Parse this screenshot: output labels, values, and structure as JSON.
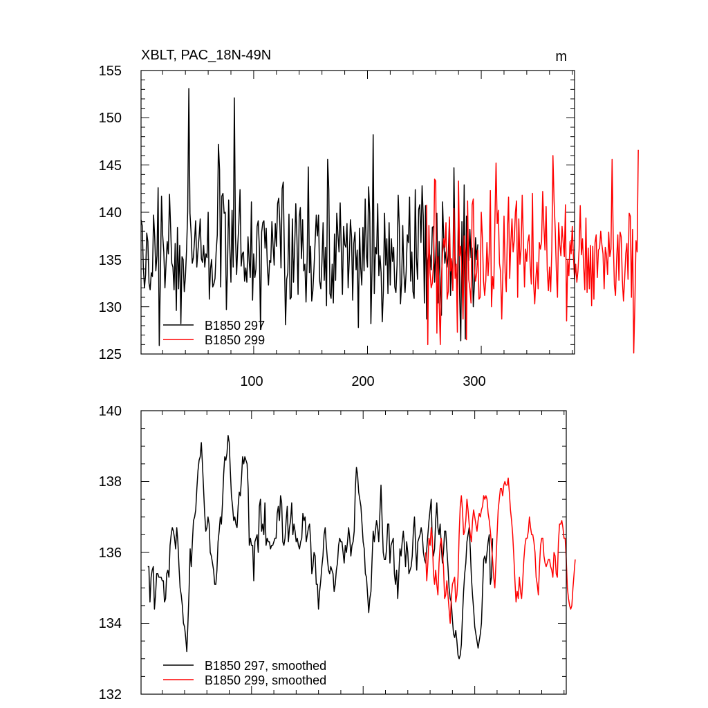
{
  "chart_data": [
    {
      "type": "line",
      "title": "XBLT, PAC_18N-49N",
      "units": "m",
      "xlim": [
        1,
        382
      ],
      "ylim": [
        125,
        155
      ],
      "xticks": [
        100,
        200,
        300
      ],
      "yticks": [
        125,
        130,
        135,
        140,
        145,
        150,
        155
      ],
      "legend_position": "bottom-left",
      "series": [
        {
          "name": "B1850 297",
          "color": "#000000",
          "x_start": 1,
          "values": [
            139.2,
            138.6,
            134.2,
            132.0,
            133.4,
            137.8,
            136.9,
            132.5,
            131.8,
            133.6,
            133.2,
            139.7,
            137.4,
            133.8,
            135.4,
            142.6,
            125.9,
            133.2,
            141.7,
            137.6,
            135.8,
            132.0,
            134.6,
            136.9,
            135.6,
            141.9,
            138.4,
            134.6,
            134.2,
            131.8,
            136.7,
            129.6,
            138.4,
            131.9,
            136.5,
            128.2,
            135.3,
            135.0,
            131.6,
            133.2,
            136.0,
            140.1,
            153.1,
            139.9,
            137.8,
            134.6,
            135.2,
            137.0,
            139.1,
            134.2,
            135.9,
            137.4,
            139.3,
            135.1,
            134.7,
            136.5,
            134.2,
            135.6,
            135.2,
            140.0,
            130.8,
            134.0,
            135.0,
            132.1,
            132.4,
            133.0,
            135.8,
            137.6,
            147.2,
            144.5,
            132.1,
            141.7,
            142.0,
            139.9,
            140.0,
            129.7,
            134.3,
            141.3,
            136.4,
            132.6,
            140.2,
            134.2,
            152.1,
            137.4,
            133.4,
            136.5,
            138.9,
            142.4,
            134.3,
            135.6,
            135.8,
            132.7,
            134.1,
            132.6,
            137.4,
            134.9,
            133.1,
            141.1,
            130.7,
            135.6,
            133.1,
            134.0,
            138.5,
            139.1,
            136.2,
            127.6,
            137.9,
            138.9,
            139.1,
            136.2,
            138.3,
            134.3,
            132.3,
            134.9,
            134.7,
            139.0,
            136.5,
            134.4,
            138.8,
            136.4,
            140.9,
            141.5,
            138.7,
            134.1,
            142.5,
            143.2,
            135.2,
            128.1,
            132.9,
            133.6,
            139.8,
            130.8,
            131.0,
            139.3,
            132.6,
            136.2,
            140.9,
            137.3,
            131.3,
            139.5,
            140.5,
            135.1,
            139.2,
            133.8,
            134.5,
            130.5,
            135.2,
            144.8,
            133.6,
            136.4,
            130.6,
            131.7,
            134.1,
            136.9,
            139.7,
            137.5,
            139.7,
            132.7,
            131.9,
            134.8,
            138.9,
            132.8,
            136.3,
            130.1,
            145.6,
            142.4,
            131.4,
            130.9,
            134.5,
            130.4,
            137.7,
            132.8,
            139.9,
            137.7,
            135.8,
            141.0,
            136.0,
            131.3,
            138.5,
            136.6,
            136.3,
            138.8,
            132.0,
            135.0,
            139.2,
            137.4,
            130.7,
            136.7,
            137.9,
            133.9,
            136.0,
            127.8,
            138.3,
            134.2,
            132.3,
            138.4,
            133.8,
            141.4,
            135.6,
            134.2,
            142.7,
            139.9,
            128.2,
            133.9,
            148.2,
            131.4,
            136.3,
            135.6,
            140.9,
            133.3,
            135.4,
            133.6,
            128.4,
            131.8,
            139.9,
            134.4,
            137.2,
            131.4,
            138.9,
            132.3,
            137.2,
            134.8,
            136.3,
            132.1,
            131.5,
            134.4,
            141.8,
            138.4,
            130.3,
            132.5,
            138.6,
            133.6,
            131.5,
            133.7,
            137.6,
            136.8,
            141.6,
            132.7,
            135.8,
            131.6,
            130.9,
            142.4,
            135.2,
            132.9,
            140.3,
            140.8,
            136.8,
            142.8,
            139.6,
            130.4,
            140.7,
            128.7,
            134.5,
            135.8,
            135.4,
            133.9,
            138.4,
            138.5,
            132.6,
            135.6,
            139.9,
            130.4,
            136.9,
            131.3,
            129.1,
            141.1,
            137.3,
            134.6,
            135.8,
            134.2,
            135.5,
            139.2,
            131.2,
            135.0,
            132.0,
            144.7,
            135.2,
            133.6,
            131.8,
            140.5,
            131.2,
            126.4,
            139.0,
            131.3,
            142.9,
            126.6,
            139.6,
            137.6,
            134.9,
            138.2,
            135.2,
            136.2,
            130.0,
            132.5,
            137.3,
            135.0,
            136.6
          ]
        },
        {
          "name": "B1850 299",
          "color": "#ff0000",
          "x_start": 252,
          "values": [
            140.8,
            126.0,
            138.6,
            133.6,
            132.0,
            132.5,
            134.4,
            143.5,
            143.3,
            127.2,
            135.3,
            130.5,
            126.0,
            133.0,
            135.7,
            137.2,
            136.3,
            138.9,
            130.8,
            131.6,
            139.5,
            133.8,
            135.1,
            131.7,
            140.4,
            133.0,
            134.5,
            127.3,
            143.3,
            135.4,
            136.4,
            133.1,
            128.7,
            137.5,
            135.4,
            126.5,
            141.2,
            132.9,
            131.9,
            130.4,
            140.8,
            141.4,
            134.0,
            132.7,
            133.6,
            136.0,
            130.8,
            131.0,
            140.0,
            137.3,
            132.7,
            131.2,
            132.8,
            136.8,
            133.3,
            135.7,
            142.3,
            130.0,
            133.2,
            131.9,
            139.1,
            145.2,
            138.8,
            140.2,
            134.6,
            133.7,
            128.7,
            133.6,
            139.6,
            133.6,
            131.6,
            138.0,
            141.6,
            133.0,
            136.8,
            139.3,
            135.8,
            137.0,
            140.0,
            141.2,
            131.0,
            139.3,
            134.5,
            136.1,
            141.8,
            137.1,
            132.1,
            136.1,
            134.8,
            136.9,
            137.6,
            134.4,
            132.4,
            142.0,
            132.5,
            130.3,
            133.0,
            134.7,
            131.9,
            136.8,
            136.1,
            136.9,
            142.2,
            138.6,
            136.0,
            140.6,
            133.9,
            131.7,
            134.2,
            131.6,
            136.0,
            146.0,
            141.2,
            138.2,
            133.8,
            131.0,
            138.9,
            136.6,
            135.4,
            138.5,
            136.8,
            135.3,
            140.8,
            128.5,
            135.0,
            133.3,
            136.9,
            135.6,
            138.5,
            135.4,
            132.9,
            134.5,
            132.6,
            133.8,
            136.1,
            140.7,
            135.5,
            137.2,
            134.3,
            131.8,
            139.4,
            131.5,
            136.2,
            131.9,
            136.5,
            130.1,
            136.4,
            130.8,
            136.8,
            137.6,
            133.1,
            136.0,
            136.2,
            138.0,
            136.6,
            135.6,
            131.9,
            136.3,
            135.5,
            133.4,
            137.9,
            135.3,
            136.1,
            145.6,
            137.1,
            132.3,
            131.2,
            135.1,
            137.6,
            132.8,
            137.9,
            137.4,
            132.8,
            130.6,
            132.9,
            135.6,
            136.7,
            132.9,
            139.9,
            139.6,
            131.0,
            138.2,
            125.1,
            130.3,
            137.0,
            135.8,
            146.6
          ]
        }
      ]
    },
    {
      "type": "line",
      "title": "",
      "units": "",
      "xlim": [
        1,
        382
      ],
      "ylim": [
        132,
        140
      ],
      "xticks": [
        100,
        200,
        300
      ],
      "yticks": [
        132,
        134,
        136,
        138,
        140
      ],
      "legend_position": "bottom-left",
      "series": [
        {
          "name": "B1850 297, smoothed",
          "color": "#000000",
          "x_start": 7,
          "values": [
            135.6,
            135.6,
            134.6,
            135.3,
            135.5,
            135.6,
            134.4,
            134.8,
            135.4,
            135.4,
            135.3,
            135.3,
            135.3,
            135.2,
            135.2,
            134.6,
            134.7,
            135.4,
            135.5,
            135.3,
            136.2,
            136.5,
            136.7,
            136.6,
            136.4,
            136.1,
            136.7,
            136.3,
            135.6,
            135.0,
            134.8,
            134.5,
            134.0,
            133.9,
            133.6,
            133.2,
            134.0,
            134.9,
            136.1,
            135.6,
            136.3,
            136.9,
            137.0,
            137.2,
            137.8,
            138.3,
            138.6,
            138.7,
            139.1,
            138.5,
            137.8,
            137.1,
            136.6,
            136.7,
            137.0,
            136.8,
            136.0,
            135.9,
            135.7,
            135.5,
            135.1,
            135.1,
            135.5,
            136.3,
            136.6,
            137.0,
            136.8,
            137.4,
            138.2,
            138.7,
            138.6,
            138.8,
            139.3,
            139.1,
            138.3,
            137.6,
            137.3,
            136.9,
            137.0,
            136.8,
            136.7,
            137.3,
            137.7,
            137.6,
            138.1,
            138.7,
            138.5,
            138.7,
            138.6,
            138.5,
            137.8,
            136.2,
            136.4,
            136.2,
            136.2,
            135.2,
            136.3,
            136.4,
            136.5,
            136.0,
            137.3,
            137.5,
            136.6,
            136.8,
            136.5,
            137.4,
            136.2,
            136.4,
            136.3,
            136.3,
            136.1,
            136.2,
            136.2,
            136.3,
            136.4,
            136.4,
            137.1,
            137.3,
            136.9,
            137.6,
            137.4,
            136.3,
            136.2,
            136.4,
            136.9,
            137.3,
            136.3,
            136.7,
            136.9,
            137.4,
            136.5,
            136.8,
            136.6,
            136.3,
            136.4,
            136.2,
            136.1,
            136.3,
            136.4,
            137.1,
            136.9,
            137.0,
            136.3,
            136.5,
            136.7,
            136.8,
            136.3,
            135.4,
            135.6,
            136.0,
            135.9,
            135.1,
            135.1,
            134.4,
            134.9,
            135.2,
            135.6,
            135.9,
            136.5,
            136.7,
            136.2,
            135.8,
            135.5,
            135.4,
            135.6,
            135.5,
            135.4,
            134.9,
            135.1,
            135.5,
            135.7,
            136.2,
            136.4,
            136.3,
            136.3,
            136.0,
            135.7,
            136.2,
            136.0,
            136.3,
            136.7,
            136.4,
            135.9,
            136.2,
            136.3,
            136.6,
            137.8,
            138.4,
            138.2,
            137.7,
            137.5,
            137.3,
            136.8,
            136.3,
            136.1,
            135.4,
            135.3,
            134.8,
            134.3,
            134.7,
            134.9,
            135.8,
            136.6,
            136.3,
            136.6,
            136.9,
            136.7,
            136.3,
            137.1,
            137.9,
            136.9,
            136.0,
            135.8,
            135.8,
            136.1,
            136.8,
            136.8,
            135.7,
            136.2,
            136.3,
            136.4,
            135.4,
            135.1,
            135.5,
            134.7,
            135.4,
            136.1,
            135.9,
            136.3,
            136.6,
            136.2,
            135.6,
            136.3,
            136.0,
            135.4,
            135.5,
            135.6,
            135.9,
            136.6,
            137.0,
            136.2,
            135.5,
            136.3,
            136.4,
            136.5,
            136.7,
            136.5,
            136.0,
            135.8,
            135.7,
            136.1,
            136.5,
            136.9,
            137.2,
            137.5,
            136.2,
            135.9,
            136.1,
            136.9,
            137.4,
            136.7,
            136.5,
            136.8,
            136.2,
            135.7,
            136.0,
            136.6,
            136.6,
            136.1,
            135.6,
            135.0,
            134.7,
            134.6,
            134.1,
            133.7,
            133.6,
            133.8,
            133.5,
            133.1,
            133.0,
            133.1,
            133.4,
            134.2,
            134.9,
            135.4,
            135.7,
            136.3,
            136.5,
            136.7,
            136.1,
            135.3,
            134.8,
            134.4,
            133.9,
            133.7,
            133.5,
            133.3,
            133.5,
            133.7,
            134.0,
            134.9,
            135.8,
            135.9,
            135.7,
            136.0,
            136.3,
            136.5,
            135.1,
            135.3,
            136.4
          ]
        },
        {
          "name": "B1850 299, smoothed",
          "color": "#ff0000",
          "x_start": 256,
          "values": [
            136.0,
            135.2,
            135.7,
            136.4,
            136.2,
            136.7,
            136.4,
            135.4,
            135.1,
            135.5,
            135.1,
            134.8,
            135.7,
            136.2,
            136.4,
            136.0,
            135.6,
            134.7,
            134.8,
            135.2,
            134.8,
            134.4,
            134.0,
            134.7,
            135.1,
            135.2,
            135.3,
            134.6,
            134.8,
            135.3,
            136.5,
            137.3,
            137.6,
            137.2,
            136.5,
            136.6,
            136.9,
            137.5,
            137.2,
            136.8,
            136.5,
            136.3,
            136.9,
            137.2,
            137.0,
            136.8,
            136.6,
            136.9,
            137.1,
            137.0,
            137.2,
            137.3,
            137.6,
            137.5,
            137.6,
            137.5,
            137.1,
            136.9,
            136.6,
            136.2,
            135.8,
            135.3,
            135.0,
            135.7,
            136.5,
            137.2,
            137.5,
            137.8,
            137.8,
            137.6,
            137.9,
            138.0,
            137.9,
            137.9,
            138.1,
            137.7,
            137.2,
            136.9,
            136.5,
            135.9,
            135.2,
            134.6,
            134.9,
            134.7,
            135.3,
            134.9,
            134.7,
            135.2,
            135.8,
            136.2,
            136.4,
            136.4,
            136.6,
            137.0,
            136.7,
            136.5,
            136.5,
            136.3,
            136.0,
            135.3,
            135.1,
            134.8,
            135.6,
            136.2,
            136.4,
            136.4,
            135.9,
            135.7,
            135.6,
            135.7,
            135.8,
            135.8,
            135.6,
            135.5,
            135.3,
            136.0,
            135.9,
            135.4,
            135.3,
            136.3,
            136.8,
            136.8,
            136.9,
            136.7,
            136.4,
            136.4,
            135.8,
            135.0,
            134.7,
            134.5,
            134.4,
            134.5,
            135.0,
            135.4,
            135.8
          ]
        }
      ]
    }
  ],
  "panel_top": {
    "title": "XBLT, PAC_18N-49N",
    "units_label": "m",
    "y_tick_labels": [
      "125",
      "130",
      "135",
      "140",
      "145",
      "150",
      "155"
    ],
    "x_tick_labels": [
      "100",
      "200",
      "300"
    ],
    "legend": [
      "B1850 297",
      "B1850 299"
    ]
  },
  "panel_bottom": {
    "y_tick_labels": [
      "132",
      "134",
      "136",
      "138",
      "140"
    ],
    "legend": [
      "B1850 297, smoothed",
      "B1850 299, smoothed"
    ]
  }
}
